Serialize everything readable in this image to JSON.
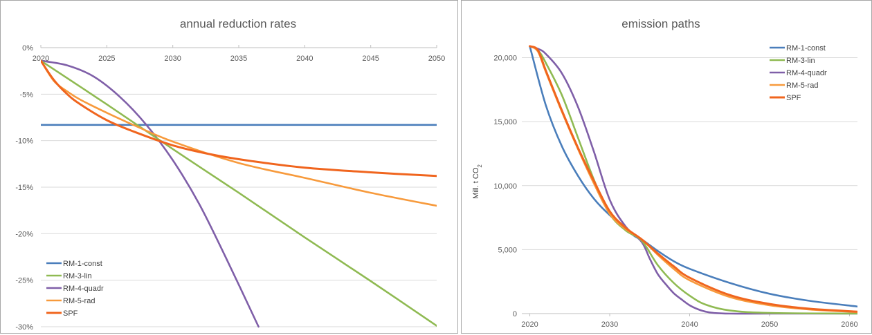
{
  "colors": {
    "RM-1-const": "#4a7ebb",
    "RM-3-lin": "#8fba52",
    "RM-4-quadr": "#7f5fa8",
    "RM-5-rad": "#f79a3c",
    "SPF": "#f0651e",
    "grid": "#d9d9d9",
    "axis": "#bfbfbf"
  },
  "chart_data": [
    {
      "type": "line",
      "title": "annual reduction rates",
      "xlabel": "",
      "ylabel": "",
      "xlim": [
        2020,
        2050
      ],
      "ylim": [
        -30,
        0
      ],
      "x_ticks": [
        2020,
        2025,
        2030,
        2035,
        2040,
        2045,
        2050
      ],
      "x_tick_labels": [
        "2020",
        "2025",
        "2030",
        "2035",
        "2040",
        "2045",
        "2050"
      ],
      "y_ticks": [
        0,
        -5,
        -10,
        -15,
        -20,
        -25,
        -30
      ],
      "y_tick_labels": [
        "0%",
        "-5%",
        "-10%",
        "-15%",
        "-20%",
        "-25%",
        "-30%"
      ],
      "grid": true,
      "legend_position": "bottom-left",
      "series": [
        {
          "name": "RM-1-const",
          "x": [
            2020,
            2050
          ],
          "y": [
            -8.3,
            -8.3
          ]
        },
        {
          "name": "RM-3-lin",
          "x": [
            2020,
            2025,
            2030,
            2035,
            2040,
            2045,
            2050
          ],
          "y": [
            -1.4,
            -6.1,
            -10.9,
            -15.6,
            -20.4,
            -25.1,
            -29.9
          ]
        },
        {
          "name": "RM-4-quadr",
          "x": [
            2020,
            2022,
            2024,
            2026,
            2028,
            2030,
            2032,
            2034,
            2036.5
          ],
          "y": [
            -1.4,
            -1.9,
            -3.1,
            -5.3,
            -8.3,
            -12.1,
            -16.8,
            -22.5,
            -30.0
          ]
        },
        {
          "name": "RM-5-rad",
          "x": [
            2020,
            2021,
            2022,
            2023,
            2025,
            2027,
            2030,
            2035,
            2040,
            2045,
            2050
          ],
          "y": [
            -1.4,
            -3.6,
            -4.7,
            -5.6,
            -7.0,
            -8.3,
            -10.1,
            -12.4,
            -14.0,
            -15.6,
            -17.0
          ]
        },
        {
          "name": "SPF",
          "x": [
            2020,
            2021,
            2022,
            2023,
            2025,
            2027,
            2030,
            2033,
            2036,
            2040,
            2045,
            2050
          ],
          "y": [
            -1.4,
            -3.5,
            -5.0,
            -6.1,
            -7.8,
            -9.0,
            -10.5,
            -11.5,
            -12.2,
            -12.9,
            -13.4,
            -13.8
          ]
        }
      ]
    },
    {
      "type": "line",
      "title": "emission paths",
      "xlabel": "",
      "ylabel": "Mill. t CO",
      "ylabel_subscript": "2",
      "xlim": [
        2019,
        2061
      ],
      "ylim": [
        0,
        21000
      ],
      "x_ticks": [
        2020,
        2030,
        2040,
        2050,
        2060
      ],
      "x_tick_labels": [
        "2020",
        "2030",
        "2040",
        "2050",
        "2060"
      ],
      "y_ticks": [
        0,
        5000,
        10000,
        15000,
        20000
      ],
      "y_tick_labels": [
        "0",
        "5,000",
        "10,000",
        "15,000",
        "20,000"
      ],
      "grid": true,
      "legend_position": "top-right",
      "series": [
        {
          "name": "RM-1-const",
          "x": [
            2020,
            2022,
            2024,
            2026,
            2028,
            2030,
            2033,
            2034,
            2036,
            2038,
            2040,
            2045,
            2050,
            2055,
            2061
          ],
          "y": [
            20900,
            16300,
            13100,
            10800,
            9000,
            7700,
            6100,
            5800,
            4900,
            4100,
            3500,
            2400,
            1550,
            1000,
            550
          ]
        },
        {
          "name": "RM-3-lin",
          "x": [
            2020,
            2021,
            2022,
            2024,
            2026,
            2028,
            2030,
            2032,
            2034,
            2036,
            2038,
            2040,
            2042,
            2045,
            2050,
            2061
          ],
          "y": [
            20900,
            20600,
            19600,
            17100,
            13800,
            10500,
            7800,
            6500,
            5700,
            3800,
            2400,
            1400,
            700,
            250,
            50,
            0
          ]
        },
        {
          "name": "RM-4-quadr",
          "x": [
            2020,
            2021,
            2022,
            2024,
            2026,
            2028,
            2030,
            2032,
            2034,
            2035,
            2036,
            2037,
            2038,
            2039,
            2040,
            2041,
            2042,
            2043,
            2045,
            2050,
            2061
          ],
          "y": [
            20900,
            20700,
            20300,
            18800,
            16200,
            12700,
            8900,
            6800,
            5600,
            4300,
            3100,
            2300,
            1600,
            1100,
            650,
            350,
            150,
            50,
            0,
            0,
            0
          ]
        },
        {
          "name": "RM-5-rad",
          "x": [
            2020,
            2021,
            2022,
            2024,
            2026,
            2028,
            2030,
            2032,
            2034,
            2036,
            2038,
            2040,
            2045,
            2050,
            2055,
            2061
          ],
          "y": [
            20900,
            20500,
            18900,
            15800,
            12900,
            10200,
            7800,
            6600,
            5800,
            4600,
            3500,
            2600,
            1300,
            650,
            320,
            120
          ]
        },
        {
          "name": "SPF",
          "x": [
            2020,
            2021,
            2022,
            2024,
            2026,
            2028,
            2030,
            2032,
            2034,
            2036,
            2038,
            2040,
            2045,
            2050,
            2055,
            2061
          ],
          "y": [
            20900,
            20600,
            19000,
            15900,
            13000,
            10400,
            8000,
            6700,
            5800,
            4700,
            3700,
            2800,
            1450,
            750,
            380,
            150
          ]
        }
      ]
    }
  ]
}
